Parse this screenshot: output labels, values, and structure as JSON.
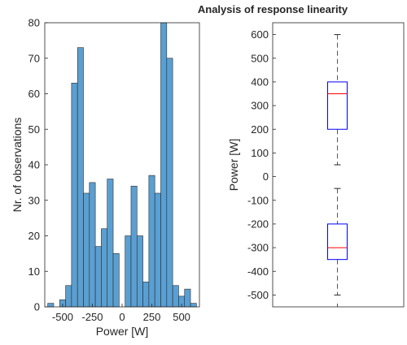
{
  "figure": {
    "title": "Analysis of response linearity"
  },
  "colors": {
    "bar_fill": "#5a9fd2",
    "bar_edge": "#2b2b2b",
    "axis": "#262626",
    "box_edge": "#0000ff",
    "median": "#ff0000",
    "whisker": "#555555",
    "background": "#ffffff"
  },
  "chart_data": [
    {
      "type": "bar",
      "subtype": "histogram",
      "title": "",
      "xlabel": "Power [W]",
      "ylabel": "Nr. of observations",
      "xlim": [
        -650,
        650
      ],
      "ylim": [
        0,
        80
      ],
      "bin_width": 50,
      "x_ticks": [
        -500,
        -250,
        0,
        250,
        500
      ],
      "x_tick_labels": [
        "-500",
        "-250",
        "0",
        "250",
        "500"
      ],
      "y_ticks": [
        0,
        10,
        20,
        30,
        40,
        50,
        60,
        70,
        80
      ],
      "y_tick_labels": [
        "0",
        "10",
        "20",
        "30",
        "40",
        "50",
        "60",
        "70",
        "80"
      ],
      "bins": [
        {
          "x0": -625,
          "x1": -575,
          "count": 1
        },
        {
          "x0": -575,
          "x1": -525,
          "count": 0
        },
        {
          "x0": -525,
          "x1": -475,
          "count": 2
        },
        {
          "x0": -475,
          "x1": -425,
          "count": 6
        },
        {
          "x0": -425,
          "x1": -375,
          "count": 63
        },
        {
          "x0": -375,
          "x1": -325,
          "count": 73
        },
        {
          "x0": -325,
          "x1": -275,
          "count": 32
        },
        {
          "x0": -275,
          "x1": -225,
          "count": 35
        },
        {
          "x0": -225,
          "x1": -175,
          "count": 17
        },
        {
          "x0": -175,
          "x1": -125,
          "count": 22
        },
        {
          "x0": -125,
          "x1": -75,
          "count": 36
        },
        {
          "x0": -75,
          "x1": -25,
          "count": 15
        },
        {
          "x0": 25,
          "x1": 75,
          "count": 20
        },
        {
          "x0": 75,
          "x1": 125,
          "count": 34
        },
        {
          "x0": 125,
          "x1": 175,
          "count": 20
        },
        {
          "x0": 175,
          "x1": 225,
          "count": 7
        },
        {
          "x0": 225,
          "x1": 275,
          "count": 37
        },
        {
          "x0": 275,
          "x1": 325,
          "count": 32
        },
        {
          "x0": 325,
          "x1": 375,
          "count": 80
        },
        {
          "x0": 375,
          "x1": 425,
          "count": 70
        },
        {
          "x0": 425,
          "x1": 475,
          "count": 6
        },
        {
          "x0": 475,
          "x1": 525,
          "count": 3
        },
        {
          "x0": 525,
          "x1": 575,
          "count": 5
        },
        {
          "x0": 575,
          "x1": 625,
          "count": 1
        }
      ],
      "grid": false
    },
    {
      "type": "box",
      "title": "",
      "xlabel": "",
      "ylabel": "Power [W]",
      "ylim": [
        -550,
        650
      ],
      "y_ticks": [
        -500,
        -400,
        -300,
        -200,
        -100,
        0,
        100,
        200,
        300,
        400,
        500,
        600
      ],
      "y_tick_labels": [
        "-500",
        "-400",
        "-300",
        "-200",
        "-100",
        "0",
        "100",
        "200",
        "300",
        "400",
        "500",
        "600"
      ],
      "boxes": [
        {
          "min": 50,
          "q1": 200,
          "median": 350,
          "q3": 400,
          "max": 600
        },
        {
          "min": -500,
          "q1": -350,
          "median": -300,
          "q3": -200,
          "max": -50
        }
      ],
      "grid": false
    }
  ]
}
